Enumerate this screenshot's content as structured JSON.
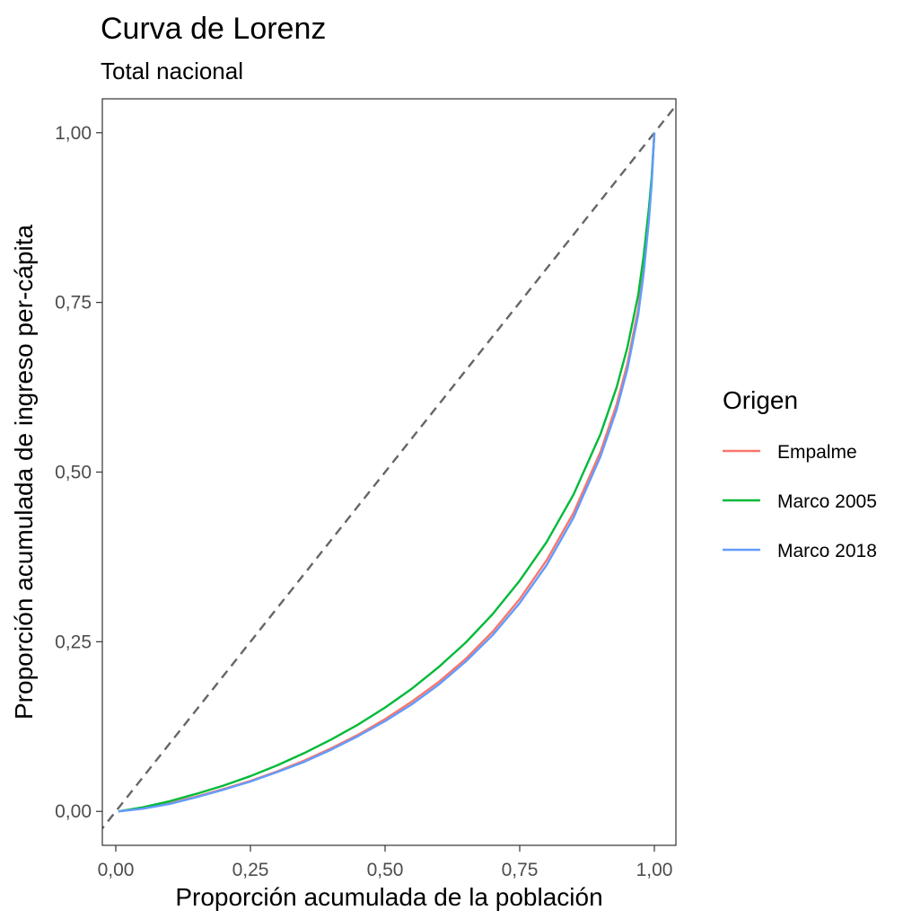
{
  "chart_data": {
    "type": "line",
    "title": "Curva de Lorenz",
    "subtitle": "Total nacional",
    "xlabel": "Proporción acumulada de la población",
    "ylabel": "Proporción acumulada de ingreso per-cápita",
    "xlim": [
      -0.025,
      1.04
    ],
    "ylim": [
      -0.05,
      1.05
    ],
    "x_ticks": [
      0,
      0.25,
      0.5,
      0.75,
      1
    ],
    "x_tick_labels": [
      "0,00",
      "0,25",
      "0,50",
      "0,75",
      "1,00"
    ],
    "y_ticks": [
      0,
      0.25,
      0.5,
      0.75,
      1
    ],
    "y_tick_labels": [
      "0,00",
      "0,25",
      "0,50",
      "0,75",
      "1,00"
    ],
    "grid": false,
    "reference_line": {
      "x": [
        -0.05,
        1.05
      ],
      "y": [
        -0.05,
        1.05
      ],
      "color": "#666666",
      "style": "dashed"
    },
    "legend": {
      "title": "Origen",
      "position": "right"
    },
    "series": [
      {
        "name": "Empalme",
        "color": "#F8766D",
        "x": [
          0.005,
          0.05,
          0.1,
          0.15,
          0.2,
          0.25,
          0.3,
          0.35,
          0.4,
          0.45,
          0.5,
          0.55,
          0.6,
          0.65,
          0.7,
          0.75,
          0.8,
          0.85,
          0.9,
          0.93,
          0.95,
          0.97,
          0.98,
          0.99,
          0.995,
          1.0
        ],
        "y": [
          0.0,
          0.004,
          0.012,
          0.022,
          0.033,
          0.045,
          0.059,
          0.075,
          0.093,
          0.113,
          0.136,
          0.162,
          0.191,
          0.225,
          0.265,
          0.313,
          0.37,
          0.44,
          0.53,
          0.6,
          0.66,
          0.74,
          0.8,
          0.88,
          0.93,
          1.0
        ]
      },
      {
        "name": "Marco 2005",
        "color": "#00BA38",
        "x": [
          0.005,
          0.05,
          0.1,
          0.15,
          0.2,
          0.25,
          0.3,
          0.35,
          0.4,
          0.45,
          0.5,
          0.55,
          0.6,
          0.65,
          0.7,
          0.75,
          0.8,
          0.85,
          0.9,
          0.93,
          0.95,
          0.97,
          0.98,
          0.99,
          0.995,
          1.0
        ],
        "y": [
          0.0,
          0.006,
          0.015,
          0.026,
          0.038,
          0.052,
          0.068,
          0.086,
          0.106,
          0.128,
          0.153,
          0.181,
          0.213,
          0.249,
          0.291,
          0.34,
          0.397,
          0.467,
          0.556,
          0.625,
          0.684,
          0.761,
          0.818,
          0.89,
          0.935,
          1.0
        ]
      },
      {
        "name": "Marco 2018",
        "color": "#619CFF",
        "x": [
          0.005,
          0.05,
          0.1,
          0.15,
          0.2,
          0.25,
          0.3,
          0.35,
          0.4,
          0.45,
          0.5,
          0.55,
          0.6,
          0.65,
          0.7,
          0.75,
          0.8,
          0.85,
          0.9,
          0.93,
          0.95,
          0.97,
          0.98,
          0.99,
          0.995,
          1.0
        ],
        "y": [
          0.0,
          0.004,
          0.011,
          0.021,
          0.032,
          0.044,
          0.058,
          0.073,
          0.091,
          0.111,
          0.133,
          0.158,
          0.187,
          0.221,
          0.26,
          0.307,
          0.363,
          0.433,
          0.523,
          0.592,
          0.652,
          0.732,
          0.792,
          0.872,
          0.925,
          1.0
        ]
      }
    ]
  }
}
